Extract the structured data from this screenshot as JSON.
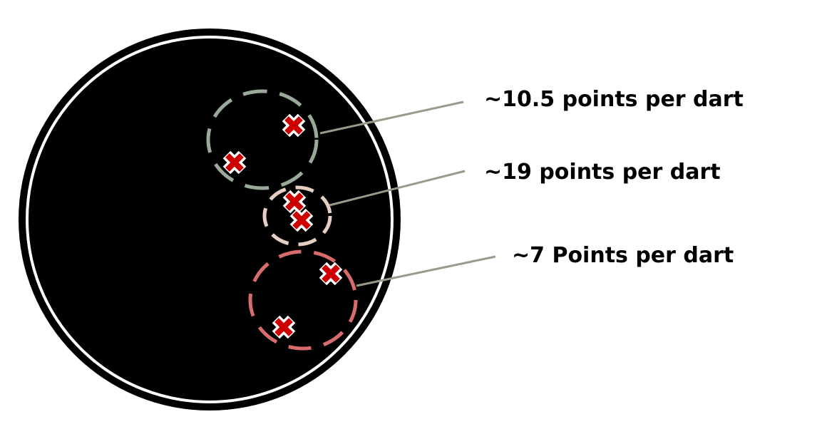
{
  "board": {
    "face_color": "#000000",
    "outer_ring_color": "#000000",
    "inner_ring_color": "#ffffff"
  },
  "marker": {
    "icon": "x-mark-icon",
    "fill_color": "#cc0000",
    "outline_color": "#ffffff"
  },
  "groups": [
    {
      "id": "group-top",
      "label": "~10.5 points per dart",
      "circle_color": "#9aaa98",
      "leader_color": "#9a9a8a"
    },
    {
      "id": "group-middle",
      "label": "~19 points per dart",
      "circle_color": "#e4cfc2",
      "leader_color": "#9a9a8a"
    },
    {
      "id": "group-bottom",
      "label": "~7 Points per dart",
      "circle_color": "#d86c6c",
      "leader_color": "#9a9a8a"
    }
  ]
}
